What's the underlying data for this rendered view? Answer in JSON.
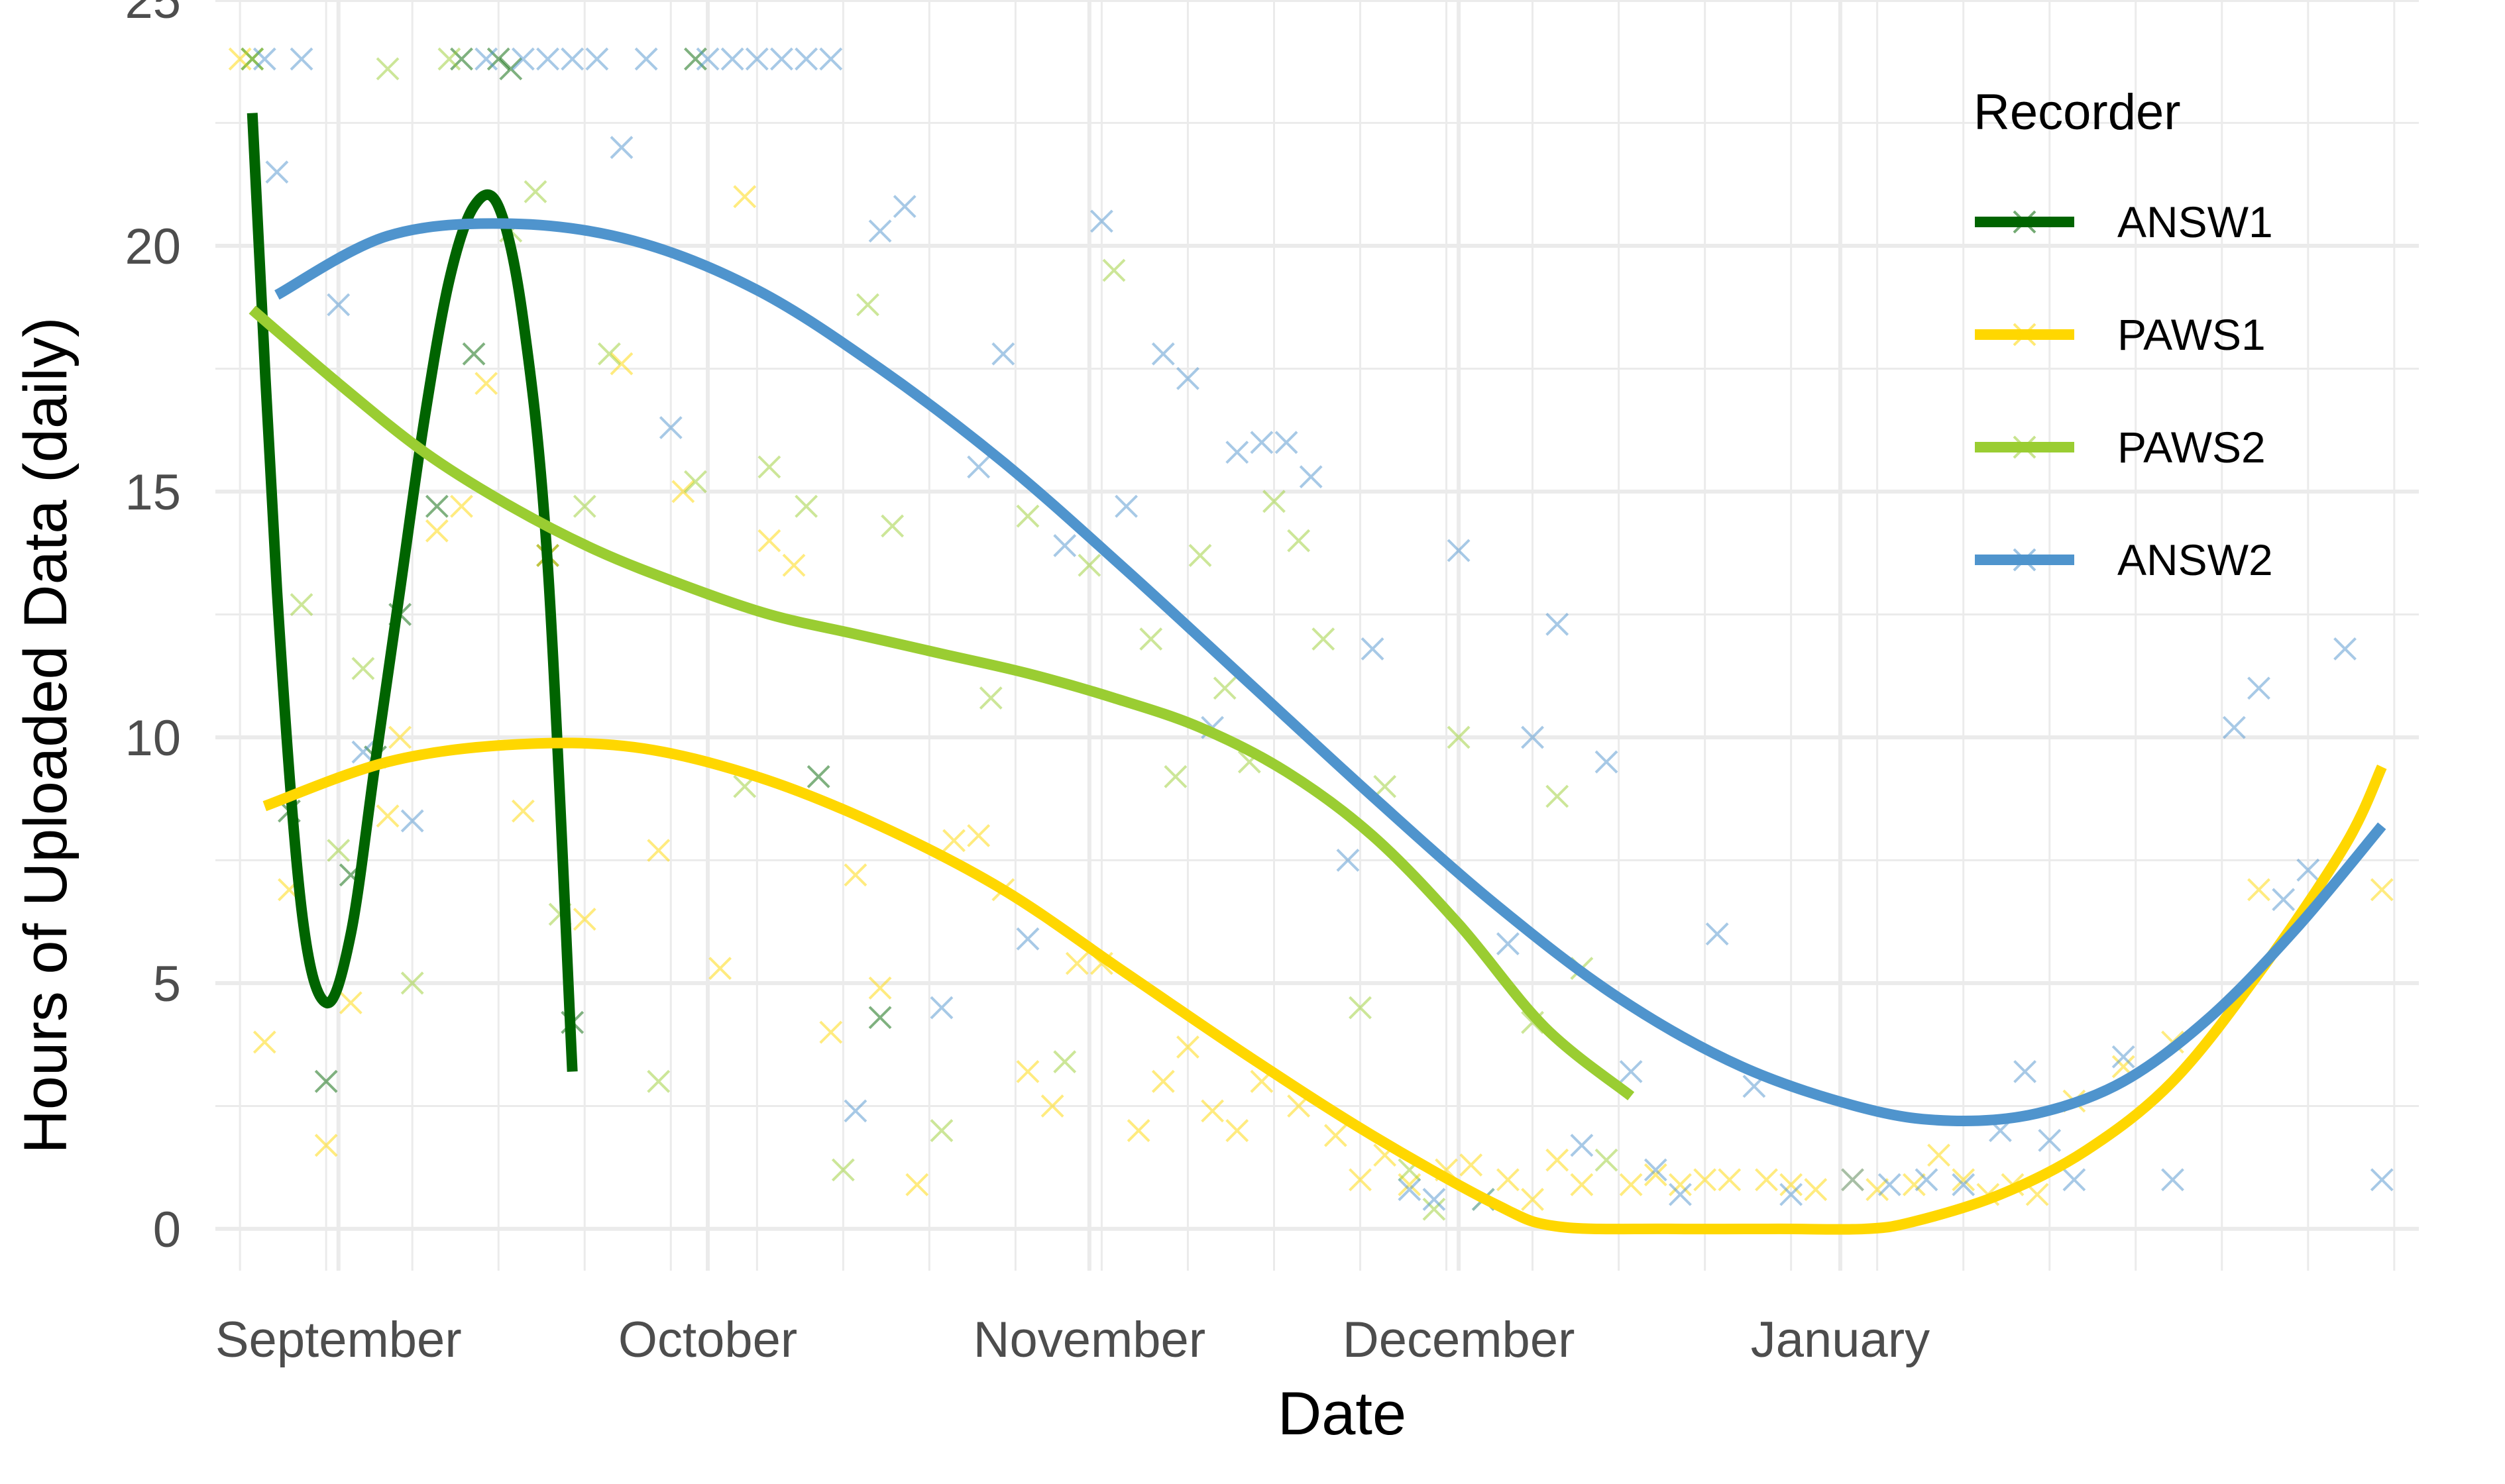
{
  "chart_data": {
    "type": "scatter",
    "xlabel": "Date",
    "ylabel": "Hours of Uploaded Data (daily)",
    "x_type": "date",
    "xlim": [
      "2020-08-22",
      "2021-02-17"
    ],
    "ylim": [
      -0.85,
      25
    ],
    "y_ticks": [
      0,
      5,
      10,
      15,
      20,
      25
    ],
    "x_ticks": [
      {
        "label": "September",
        "date": "2020-09-01"
      },
      {
        "label": "October",
        "date": "2020-10-01"
      },
      {
        "label": "November",
        "date": "2020-11-01"
      },
      {
        "label": "December",
        "date": "2020-12-01"
      },
      {
        "label": "January",
        "date": "2021-01-01"
      }
    ],
    "grid": true,
    "legend": {
      "title": "Recorder",
      "position": "top-right"
    },
    "series": [
      {
        "name": "ANSW1",
        "color": "#006400",
        "points": [
          [
            "2020-08-25",
            23.8
          ],
          [
            "2020-08-28",
            8.5
          ],
          [
            "2020-08-31",
            3.0
          ],
          [
            "2020-09-02",
            7.2
          ],
          [
            "2020-09-04",
            9.6
          ],
          [
            "2020-09-06",
            12.5
          ],
          [
            "2020-09-09",
            14.7
          ],
          [
            "2020-09-11",
            23.8
          ],
          [
            "2020-09-12",
            17.8
          ],
          [
            "2020-09-14",
            23.8
          ],
          [
            "2020-09-15",
            23.6
          ],
          [
            "2020-09-18",
            13.7
          ],
          [
            "2020-09-20",
            4.2
          ],
          [
            "2020-09-30",
            23.8
          ],
          [
            "2020-10-10",
            9.2
          ],
          [
            "2020-10-15",
            4.3
          ]
        ],
        "trend": [
          [
            "2020-08-25",
            22.7
          ],
          [
            "2020-08-27",
            13.0
          ],
          [
            "2020-08-29",
            6.5
          ],
          [
            "2020-08-31",
            4.6
          ],
          [
            "2020-09-02",
            6.0
          ],
          [
            "2020-09-04",
            9.5
          ],
          [
            "2020-09-06",
            13.0
          ],
          [
            "2020-09-08",
            16.5
          ],
          [
            "2020-09-10",
            19.3
          ],
          [
            "2020-09-12",
            20.8
          ],
          [
            "2020-09-14",
            20.8
          ],
          [
            "2020-09-16",
            18.5
          ],
          [
            "2020-09-18",
            13.5
          ],
          [
            "2020-09-20",
            3.2
          ]
        ]
      },
      {
        "name": "PAWS1",
        "color": "#FFD700",
        "points": [
          [
            "2020-08-24",
            23.8
          ],
          [
            "2020-08-26",
            3.8
          ],
          [
            "2020-08-28",
            6.9
          ],
          [
            "2020-08-31",
            1.7
          ],
          [
            "2020-09-02",
            4.6
          ],
          [
            "2020-09-05",
            8.4
          ],
          [
            "2020-09-06",
            10.0
          ],
          [
            "2020-09-09",
            14.2
          ],
          [
            "2020-09-11",
            14.7
          ],
          [
            "2020-09-13",
            17.2
          ],
          [
            "2020-09-16",
            8.5
          ],
          [
            "2020-09-18",
            13.7
          ],
          [
            "2020-09-21",
            6.3
          ],
          [
            "2020-09-24",
            17.6
          ],
          [
            "2020-09-27",
            7.7
          ],
          [
            "2020-09-29",
            15.0
          ],
          [
            "2020-10-02",
            5.3
          ],
          [
            "2020-10-04",
            21.0
          ],
          [
            "2020-10-06",
            14.0
          ],
          [
            "2020-10-08",
            13.5
          ],
          [
            "2020-10-11",
            4.0
          ],
          [
            "2020-10-13",
            7.2
          ],
          [
            "2020-10-15",
            4.9
          ],
          [
            "2020-10-18",
            0.9
          ],
          [
            "2020-10-21",
            7.9
          ],
          [
            "2020-10-23",
            8.0
          ],
          [
            "2020-10-25",
            6.9
          ],
          [
            "2020-10-27",
            3.2
          ],
          [
            "2020-10-29",
            2.5
          ],
          [
            "2020-10-31",
            5.4
          ],
          [
            "2020-11-02",
            5.4
          ],
          [
            "2020-11-05",
            2.0
          ],
          [
            "2020-11-07",
            3.0
          ],
          [
            "2020-11-09",
            3.7
          ],
          [
            "2020-11-11",
            2.4
          ],
          [
            "2020-11-13",
            2.0
          ],
          [
            "2020-11-15",
            3.0
          ],
          [
            "2020-11-18",
            2.5
          ],
          [
            "2020-11-21",
            1.9
          ],
          [
            "2020-11-23",
            1.0
          ],
          [
            "2020-11-25",
            1.5
          ],
          [
            "2020-11-27",
            0.9
          ],
          [
            "2020-11-30",
            1.2
          ],
          [
            "2020-12-02",
            1.3
          ],
          [
            "2020-12-05",
            1.0
          ],
          [
            "2020-12-07",
            0.6
          ],
          [
            "2020-12-09",
            1.4
          ],
          [
            "2020-12-11",
            0.9
          ],
          [
            "2020-12-15",
            0.9
          ],
          [
            "2020-12-17",
            1.1
          ],
          [
            "2020-12-19",
            0.9
          ],
          [
            "2020-12-21",
            1.0
          ],
          [
            "2020-12-23",
            1.0
          ],
          [
            "2020-12-26",
            1.0
          ],
          [
            "2020-12-28",
            0.9
          ],
          [
            "2020-12-30",
            0.8
          ],
          [
            "2021-01-02",
            1.0
          ],
          [
            "2021-01-04",
            0.8
          ],
          [
            "2021-01-07",
            0.9
          ],
          [
            "2021-01-09",
            1.5
          ],
          [
            "2021-01-11",
            1.0
          ],
          [
            "2021-01-13",
            0.7
          ],
          [
            "2021-01-15",
            0.9
          ],
          [
            "2021-01-17",
            0.7
          ],
          [
            "2021-01-20",
            2.6
          ],
          [
            "2021-01-24",
            3.3
          ],
          [
            "2021-01-28",
            3.8
          ],
          [
            "2021-02-04",
            6.9
          ],
          [
            "2021-02-14",
            6.9
          ]
        ],
        "trend": [
          [
            "2020-08-26",
            8.6
          ],
          [
            "2020-09-05",
            9.5
          ],
          [
            "2020-09-15",
            9.85
          ],
          [
            "2020-09-25",
            9.8
          ],
          [
            "2020-10-05",
            9.2
          ],
          [
            "2020-10-15",
            8.2
          ],
          [
            "2020-10-25",
            6.9
          ],
          [
            "2020-11-04",
            5.2
          ],
          [
            "2020-11-14",
            3.5
          ],
          [
            "2020-11-24",
            1.9
          ],
          [
            "2020-12-04",
            0.5
          ],
          [
            "2020-12-09",
            0.05
          ],
          [
            "2020-12-18",
            0.0
          ],
          [
            "2020-12-27",
            0.0
          ],
          [
            "2021-01-03",
            0.0
          ],
          [
            "2021-01-07",
            0.15
          ],
          [
            "2021-01-14",
            0.7
          ],
          [
            "2021-01-21",
            1.6
          ],
          [
            "2021-01-28",
            3.0
          ],
          [
            "2021-02-04",
            5.2
          ],
          [
            "2021-02-11",
            7.8
          ],
          [
            "2021-02-14",
            9.4
          ]
        ]
      },
      {
        "name": "PAWS2",
        "color": "#9ACD32",
        "points": [
          [
            "2020-08-25",
            23.8
          ],
          [
            "2020-08-29",
            12.7
          ],
          [
            "2020-09-01",
            7.7
          ],
          [
            "2020-09-03",
            11.4
          ],
          [
            "2020-09-05",
            23.6
          ],
          [
            "2020-09-07",
            5.0
          ],
          [
            "2020-09-10",
            23.8
          ],
          [
            "2020-09-15",
            20.3
          ],
          [
            "2020-09-17",
            21.1
          ],
          [
            "2020-09-19",
            6.4
          ],
          [
            "2020-09-21",
            14.7
          ],
          [
            "2020-09-23",
            17.8
          ],
          [
            "2020-09-27",
            3.0
          ],
          [
            "2020-09-30",
            15.2
          ],
          [
            "2020-10-04",
            9.0
          ],
          [
            "2020-10-06",
            15.5
          ],
          [
            "2020-10-09",
            14.7
          ],
          [
            "2020-10-12",
            1.2
          ],
          [
            "2020-10-14",
            18.8
          ],
          [
            "2020-10-16",
            14.3
          ],
          [
            "2020-10-20",
            2.0
          ],
          [
            "2020-10-24",
            10.8
          ],
          [
            "2020-10-27",
            14.5
          ],
          [
            "2020-10-30",
            3.4
          ],
          [
            "2020-11-01",
            13.5
          ],
          [
            "2020-11-03",
            19.5
          ],
          [
            "2020-11-06",
            12.0
          ],
          [
            "2020-11-08",
            9.2
          ],
          [
            "2020-11-10",
            13.7
          ],
          [
            "2020-11-12",
            11.0
          ],
          [
            "2020-11-14",
            9.5
          ],
          [
            "2020-11-16",
            14.8
          ],
          [
            "2020-11-18",
            14.0
          ],
          [
            "2020-11-20",
            12.0
          ],
          [
            "2020-11-23",
            4.5
          ],
          [
            "2020-11-25",
            9.0
          ],
          [
            "2020-11-27",
            1.2
          ],
          [
            "2020-11-29",
            0.4
          ],
          [
            "2020-12-01",
            10.0
          ],
          [
            "2020-12-03",
            0.6
          ],
          [
            "2020-12-07",
            4.2
          ],
          [
            "2020-12-09",
            8.8
          ],
          [
            "2020-12-11",
            5.3
          ],
          [
            "2020-12-13",
            1.4
          ]
        ],
        "trend": [
          [
            "2020-08-25",
            18.7
          ],
          [
            "2020-09-01",
            17.2
          ],
          [
            "2020-09-08",
            15.8
          ],
          [
            "2020-09-15",
            14.7
          ],
          [
            "2020-09-22",
            13.8
          ],
          [
            "2020-09-29",
            13.1
          ],
          [
            "2020-10-06",
            12.5
          ],
          [
            "2020-10-13",
            12.1
          ],
          [
            "2020-10-20",
            11.7
          ],
          [
            "2020-10-27",
            11.3
          ],
          [
            "2020-11-03",
            10.8
          ],
          [
            "2020-11-10",
            10.2
          ],
          [
            "2020-11-17",
            9.3
          ],
          [
            "2020-11-24",
            8.0
          ],
          [
            "2020-12-01",
            6.2
          ],
          [
            "2020-12-08",
            4.1
          ],
          [
            "2020-12-15",
            2.7
          ]
        ]
      },
      {
        "name": "ANSW2",
        "color": "#4F94CD",
        "points": [
          [
            "2020-08-26",
            23.8
          ],
          [
            "2020-08-27",
            21.5
          ],
          [
            "2020-08-29",
            23.8
          ],
          [
            "2020-09-01",
            18.8
          ],
          [
            "2020-09-03",
            9.7
          ],
          [
            "2020-09-07",
            8.3
          ],
          [
            "2020-09-13",
            23.8
          ],
          [
            "2020-09-16",
            23.8
          ],
          [
            "2020-09-18",
            23.8
          ],
          [
            "2020-09-20",
            23.8
          ],
          [
            "2020-09-22",
            23.8
          ],
          [
            "2020-09-24",
            22.0
          ],
          [
            "2020-09-26",
            23.8
          ],
          [
            "2020-09-28",
            16.3
          ],
          [
            "2020-10-01",
            23.8
          ],
          [
            "2020-10-03",
            23.8
          ],
          [
            "2020-10-05",
            23.8
          ],
          [
            "2020-10-07",
            23.8
          ],
          [
            "2020-10-09",
            23.8
          ],
          [
            "2020-10-11",
            23.8
          ],
          [
            "2020-10-13",
            2.4
          ],
          [
            "2020-10-15",
            20.3
          ],
          [
            "2020-10-17",
            20.8
          ],
          [
            "2020-10-20",
            4.5
          ],
          [
            "2020-10-23",
            15.5
          ],
          [
            "2020-10-25",
            17.8
          ],
          [
            "2020-10-27",
            5.9
          ],
          [
            "2020-10-30",
            13.9
          ],
          [
            "2020-11-02",
            20.5
          ],
          [
            "2020-11-04",
            14.7
          ],
          [
            "2020-11-07",
            17.8
          ],
          [
            "2020-11-09",
            17.3
          ],
          [
            "2020-11-11",
            10.2
          ],
          [
            "2020-11-13",
            15.8
          ],
          [
            "2020-11-15",
            16.0
          ],
          [
            "2020-11-17",
            16.0
          ],
          [
            "2020-11-19",
            15.3
          ],
          [
            "2020-11-22",
            7.5
          ],
          [
            "2020-11-24",
            11.8
          ],
          [
            "2020-11-27",
            0.8
          ],
          [
            "2020-11-29",
            0.6
          ],
          [
            "2020-12-01",
            13.8
          ],
          [
            "2020-12-03",
            0.6
          ],
          [
            "2020-12-05",
            5.8
          ],
          [
            "2020-12-07",
            10.0
          ],
          [
            "2020-12-09",
            12.3
          ],
          [
            "2020-12-11",
            1.7
          ],
          [
            "2020-12-13",
            9.5
          ],
          [
            "2020-12-15",
            3.2
          ],
          [
            "2020-12-17",
            1.2
          ],
          [
            "2020-12-19",
            0.7
          ],
          [
            "2020-12-22",
            6.0
          ],
          [
            "2020-12-25",
            2.9
          ],
          [
            "2020-12-28",
            0.7
          ],
          [
            "2021-01-02",
            1.0
          ],
          [
            "2021-01-05",
            0.9
          ],
          [
            "2021-01-08",
            1.0
          ],
          [
            "2021-01-11",
            0.9
          ],
          [
            "2021-01-14",
            2.0
          ],
          [
            "2021-01-16",
            3.2
          ],
          [
            "2021-01-18",
            1.8
          ],
          [
            "2021-01-20",
            1.0
          ],
          [
            "2021-01-24",
            3.5
          ],
          [
            "2021-01-28",
            1.0
          ],
          [
            "2021-02-02",
            10.2
          ],
          [
            "2021-02-04",
            11.0
          ],
          [
            "2021-02-06",
            6.7
          ],
          [
            "2021-02-08",
            7.3
          ],
          [
            "2021-02-11",
            11.8
          ],
          [
            "2021-02-14",
            1.0
          ]
        ],
        "trend": [
          [
            "2020-08-27",
            19.0
          ],
          [
            "2020-09-05",
            20.2
          ],
          [
            "2020-09-15",
            20.45
          ],
          [
            "2020-09-25",
            20.1
          ],
          [
            "2020-10-05",
            19.1
          ],
          [
            "2020-10-15",
            17.5
          ],
          [
            "2020-10-25",
            15.6
          ],
          [
            "2020-11-04",
            13.4
          ],
          [
            "2020-11-14",
            11.1
          ],
          [
            "2020-11-24",
            8.8
          ],
          [
            "2020-12-04",
            6.6
          ],
          [
            "2020-12-14",
            4.7
          ],
          [
            "2020-12-24",
            3.3
          ],
          [
            "2021-01-03",
            2.45
          ],
          [
            "2021-01-10",
            2.2
          ],
          [
            "2021-01-17",
            2.35
          ],
          [
            "2021-01-24",
            3.0
          ],
          [
            "2021-01-31",
            4.3
          ],
          [
            "2021-02-07",
            6.1
          ],
          [
            "2021-02-14",
            8.2
          ]
        ]
      }
    ]
  }
}
